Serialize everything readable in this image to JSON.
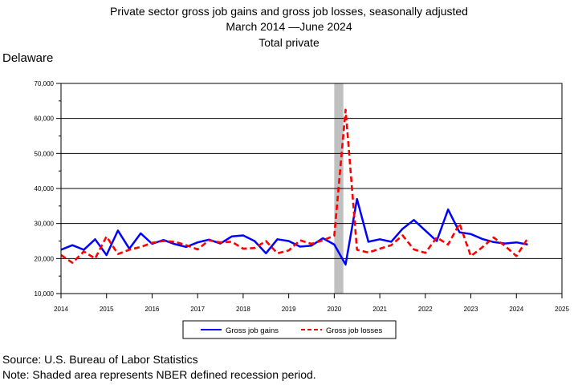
{
  "header": {
    "title_line1": "Private sector gross job gains and gross job losses, seasonally adjusted",
    "title_line2": "March 2014 —June 2024",
    "title_line3": "Total private",
    "region": "Delaware"
  },
  "footer": {
    "source": "Source: U.S. Bureau of Labor Statistics",
    "note": "Note: Shaded area represents NBER defined recession period."
  },
  "chart_data": {
    "type": "line",
    "title": "Private sector gross job gains and gross job losses, seasonally adjusted",
    "subtitle": "March 2014 —June 2024",
    "xlim": [
      2014,
      2025
    ],
    "ylim": [
      10000,
      70000
    ],
    "x_ticks": [
      2014,
      2015,
      2016,
      2017,
      2018,
      2019,
      2020,
      2021,
      2022,
      2023,
      2024,
      2025
    ],
    "x_tick_labels": [
      "2014",
      "2015",
      "2016",
      "2017",
      "2018",
      "2019",
      "2020",
      "2021",
      "2022",
      "2023",
      "2024",
      "2025"
    ],
    "y_ticks": [
      10000,
      20000,
      30000,
      40000,
      50000,
      60000,
      70000
    ],
    "y_tick_labels": [
      "10,000",
      "20,000",
      "30,000",
      "40,000",
      "50,000",
      "60,000",
      "70,000"
    ],
    "grid": true,
    "legend_position": "bottom",
    "recession": {
      "start": 2020.0,
      "end": 2020.2
    },
    "series": [
      {
        "name": "Gross job gains",
        "color": "#0000ff",
        "style": "solid",
        "points": [
          [
            2014.0,
            22500
          ],
          [
            2014.25,
            23800
          ],
          [
            2014.5,
            22500
          ],
          [
            2014.75,
            25500
          ],
          [
            2015.0,
            21000
          ],
          [
            2015.25,
            28000
          ],
          [
            2015.5,
            22800
          ],
          [
            2015.75,
            27200
          ],
          [
            2016.0,
            24200
          ],
          [
            2016.25,
            25300
          ],
          [
            2016.5,
            24100
          ],
          [
            2016.75,
            23300
          ],
          [
            2017.0,
            24600
          ],
          [
            2017.25,
            25400
          ],
          [
            2017.5,
            24300
          ],
          [
            2017.75,
            26300
          ],
          [
            2018.0,
            26600
          ],
          [
            2018.25,
            25000
          ],
          [
            2018.5,
            21500
          ],
          [
            2018.75,
            25500
          ],
          [
            2019.0,
            25000
          ],
          [
            2019.25,
            23400
          ],
          [
            2019.5,
            23700
          ],
          [
            2019.75,
            25800
          ],
          [
            2020.0,
            24000
          ],
          [
            2020.25,
            18300
          ],
          [
            2020.5,
            37000
          ],
          [
            2020.75,
            24800
          ],
          [
            2021.0,
            25500
          ],
          [
            2021.25,
            24800
          ],
          [
            2021.5,
            28500
          ],
          [
            2021.75,
            31000
          ],
          [
            2022.0,
            28000
          ],
          [
            2022.25,
            25000
          ],
          [
            2022.5,
            34000
          ],
          [
            2022.75,
            27500
          ],
          [
            2023.0,
            27000
          ],
          [
            2023.25,
            25600
          ],
          [
            2023.5,
            24700
          ],
          [
            2023.75,
            24300
          ],
          [
            2024.0,
            24600
          ],
          [
            2024.25,
            24000
          ]
        ]
      },
      {
        "name": "Gross job losses",
        "color": "#ff0000",
        "style": "dashed",
        "points": [
          [
            2014.0,
            21000
          ],
          [
            2014.25,
            18800
          ],
          [
            2014.5,
            22000
          ],
          [
            2014.75,
            20000
          ],
          [
            2015.0,
            26300
          ],
          [
            2015.25,
            21300
          ],
          [
            2015.5,
            22500
          ],
          [
            2015.75,
            23300
          ],
          [
            2016.0,
            24500
          ],
          [
            2016.25,
            25000
          ],
          [
            2016.5,
            24800
          ],
          [
            2016.75,
            23800
          ],
          [
            2017.0,
            22600
          ],
          [
            2017.25,
            25200
          ],
          [
            2017.5,
            24600
          ],
          [
            2017.75,
            24800
          ],
          [
            2018.0,
            22800
          ],
          [
            2018.25,
            23000
          ],
          [
            2018.5,
            25000
          ],
          [
            2018.75,
            21500
          ],
          [
            2019.0,
            22300
          ],
          [
            2019.25,
            25200
          ],
          [
            2019.5,
            24200
          ],
          [
            2019.75,
            25200
          ],
          [
            2020.0,
            26500
          ],
          [
            2020.25,
            62500
          ],
          [
            2020.5,
            22500
          ],
          [
            2020.75,
            21700
          ],
          [
            2021.0,
            22800
          ],
          [
            2021.25,
            23800
          ],
          [
            2021.5,
            26600
          ],
          [
            2021.75,
            22600
          ],
          [
            2022.0,
            21600
          ],
          [
            2022.25,
            26000
          ],
          [
            2022.5,
            24000
          ],
          [
            2022.75,
            30000
          ],
          [
            2023.0,
            20700
          ],
          [
            2023.25,
            23200
          ],
          [
            2023.5,
            26000
          ],
          [
            2023.75,
            23600
          ],
          [
            2024.0,
            20700
          ],
          [
            2024.25,
            25800
          ]
        ]
      }
    ]
  }
}
